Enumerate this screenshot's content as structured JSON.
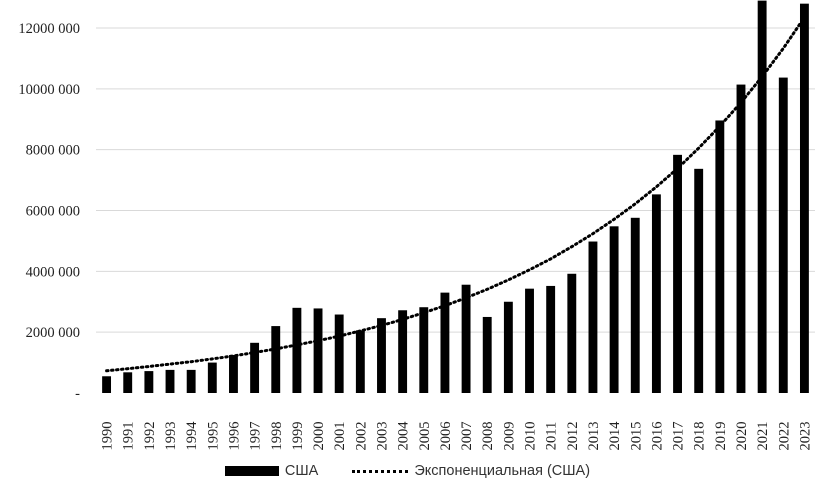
{
  "chart_data": {
    "type": "bar",
    "title": "",
    "xlabel": "",
    "ylabel": "",
    "ylim": [
      0,
      12000000
    ],
    "y_ticks": [
      {
        "value": 0,
        "label": "-"
      },
      {
        "value": 2000000,
        "label": "2000 000"
      },
      {
        "value": 4000000,
        "label": "4000 000"
      },
      {
        "value": 6000000,
        "label": "6000 000"
      },
      {
        "value": 8000000,
        "label": "8000 000"
      },
      {
        "value": 10000000,
        "label": "10000 000"
      },
      {
        "value": 12000000,
        "label": "12000 000"
      }
    ],
    "categories": [
      "1990",
      "1991",
      "1992",
      "1993",
      "1994",
      "1995",
      "1996",
      "1997",
      "1998",
      "1999",
      "2000",
      "2001",
      "2002",
      "2003",
      "2004",
      "2005",
      "2006",
      "2007",
      "2008",
      "2009",
      "2010",
      "2011",
      "2012",
      "2013",
      "2014",
      "2015",
      "2016",
      "2017",
      "2018",
      "2019",
      "2020",
      "2021",
      "2022",
      "2023"
    ],
    "series": [
      {
        "name": "США",
        "type": "bar",
        "color": "#000000",
        "values": [
          550000,
          680000,
          720000,
          760000,
          760000,
          1000000,
          1250000,
          1650000,
          2200000,
          2800000,
          2780000,
          2580000,
          2060000,
          2460000,
          2720000,
          2820000,
          3300000,
          3560000,
          2500000,
          3000000,
          3430000,
          3520000,
          3920000,
          4980000,
          5480000,
          5760000,
          6530000,
          7830000,
          7370000,
          8960000,
          10140000,
          12900000,
          10370000,
          12800000
        ]
      },
      {
        "name": "Экспоненциальная (США)",
        "type": "line",
        "style": "dotted",
        "color": "#000000",
        "values": [
          730000,
          800000,
          870000,
          950000,
          1030000,
          1120000,
          1220000,
          1330000,
          1450000,
          1580000,
          1720000,
          1870000,
          2040000,
          2220000,
          2420000,
          2640000,
          2870000,
          3130000,
          3410000,
          3720000,
          4050000,
          4410000,
          4810000,
          5240000,
          5710000,
          6220000,
          6780000,
          7380000,
          8050000,
          8770000,
          9550000,
          10400000,
          11330000,
          12350000
        ]
      }
    ],
    "grid": "horizontal",
    "legend": "bottom"
  }
}
